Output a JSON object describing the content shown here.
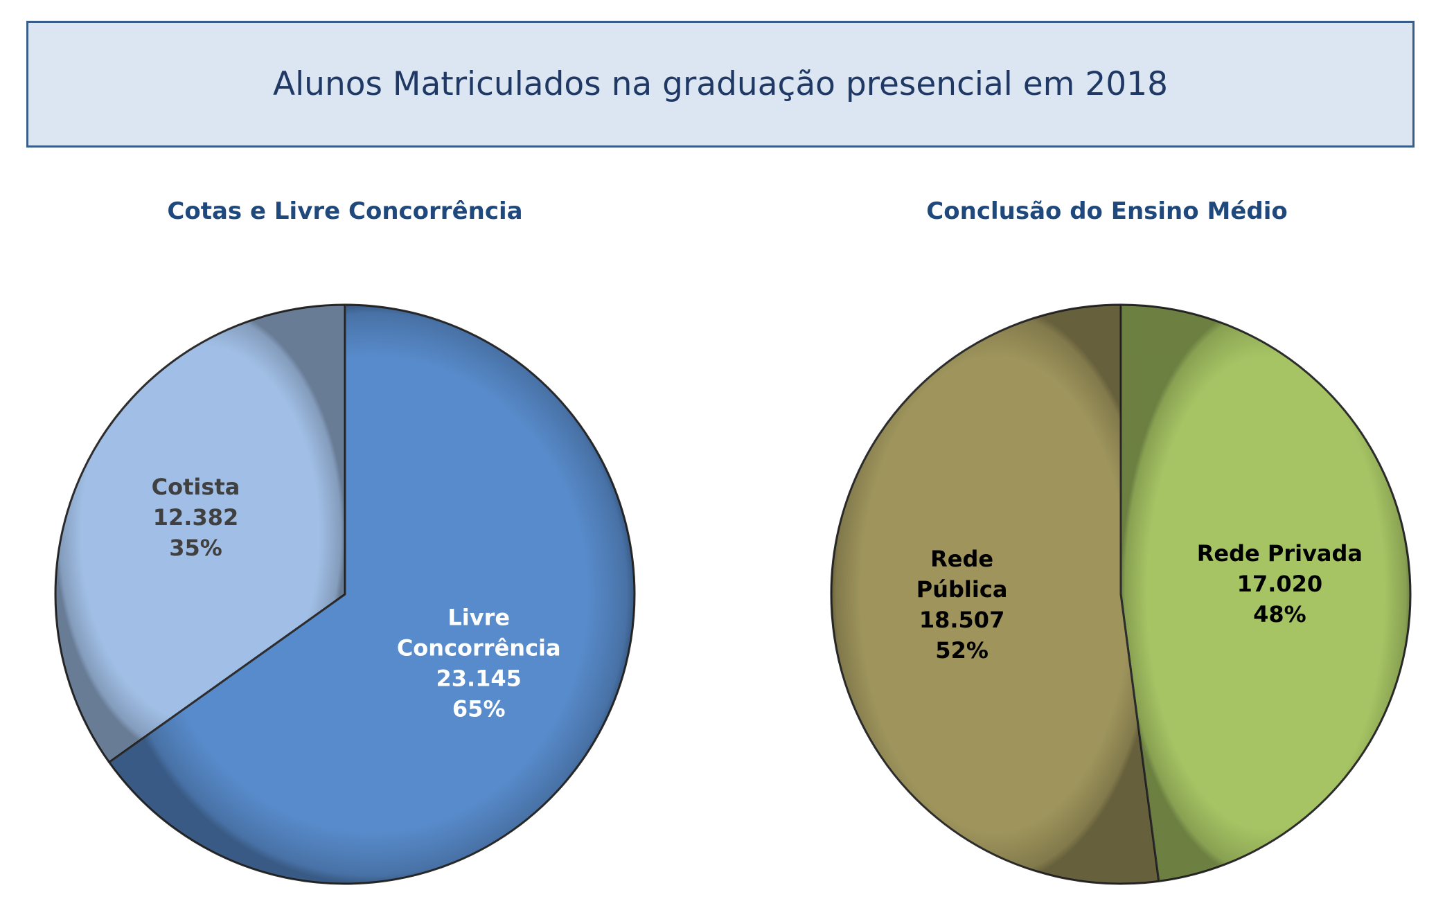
{
  "title": "Alunos Matriculados na graduação presencial em 2018",
  "chart_data": [
    {
      "type": "pie",
      "title": "Cotas e Livre Concorrência",
      "slices": [
        {
          "label": "Livre Concorrência",
          "label_lines": [
            "Livre",
            "Concorrência"
          ],
          "value": 23145,
          "value_text": "23.145",
          "percent_text": "65%",
          "percent": 65,
          "color": "#588bcb",
          "text_color": "#ffffff"
        },
        {
          "label": "Cotista",
          "label_lines": [
            "Cotista"
          ],
          "value": 12382,
          "value_text": "12.382",
          "percent_text": "35%",
          "percent": 35,
          "color": "#a1bfe6",
          "text_color": "#404040"
        }
      ]
    },
    {
      "type": "pie",
      "title": "Conclusão do Ensino Médio",
      "slices": [
        {
          "label": "Rede Privada",
          "label_lines": [
            "Rede Privada"
          ],
          "value": 17020,
          "value_text": "17.020",
          "percent_text": "48%",
          "percent": 48,
          "color": "#a6c464",
          "text_color": "#000000"
        },
        {
          "label": "Rede Pública",
          "label_lines": [
            "Rede",
            "Pública"
          ],
          "value": 18507,
          "value_text": "18.507",
          "percent_text": "52%",
          "percent": 52,
          "color": "#9e945c",
          "text_color": "#000000"
        }
      ]
    }
  ]
}
